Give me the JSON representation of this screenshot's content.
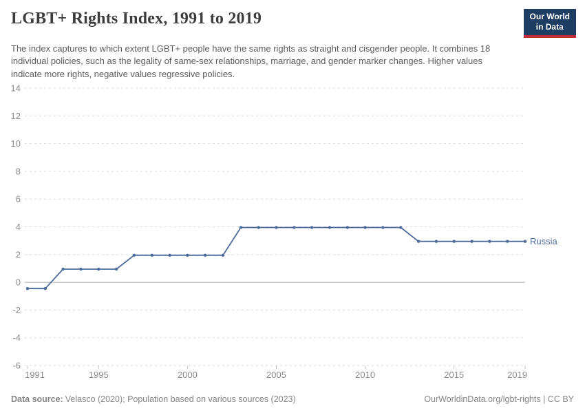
{
  "header": {
    "title": "LGBT+ Rights Index, 1991 to 2019",
    "subtitle": "The index captures to which extent LGBT+ people have the same rights as straight and cisgender people. It combines 18 individual policies, such as the legality of same-sex relationships, marriage, and gender marker changes. Higher values indicate more rights, negative values regressive policies.",
    "logo": {
      "line1": "Our World",
      "line2": "in Data"
    }
  },
  "chart_data": {
    "type": "line",
    "title": "LGBT+ Rights Index, 1991 to 2019",
    "xlabel": "",
    "ylabel": "",
    "xlim": [
      1991,
      2019
    ],
    "ylim": [
      -6,
      14
    ],
    "xticks": [
      1991,
      1995,
      2000,
      2005,
      2010,
      2015,
      2019
    ],
    "yticks": [
      14,
      12,
      10,
      8,
      6,
      4,
      2,
      0,
      -2,
      -4,
      -6
    ],
    "grid": "horizontal-dashed",
    "legend_position": "label-at-line-end",
    "series": [
      {
        "name": "Russia",
        "color": "#4C6A9C",
        "x": [
          1991,
          1992,
          1993,
          1994,
          1995,
          1996,
          1997,
          1998,
          1999,
          2000,
          2001,
          2002,
          2003,
          2004,
          2005,
          2006,
          2007,
          2008,
          2009,
          2010,
          2011,
          2012,
          2013,
          2014,
          2015,
          2016,
          2017,
          2018,
          2019
        ],
        "values": [
          -0.45,
          -0.45,
          0.95,
          0.95,
          0.95,
          0.95,
          1.95,
          1.95,
          1.95,
          1.95,
          1.95,
          1.95,
          3.95,
          3.95,
          3.95,
          3.95,
          3.95,
          3.95,
          3.95,
          3.95,
          3.95,
          3.95,
          2.95,
          2.95,
          2.95,
          2.95,
          2.95,
          2.95,
          2.95
        ]
      }
    ]
  },
  "footer": {
    "datasource_label": "Data source:",
    "datasource_text": "Velasco (2020); Population based on various sources (2023)",
    "credit": "OurWorldinData.org/lgbt-rights | CC BY"
  },
  "colors": {
    "line": "#4C6A9C",
    "grid": "#dadada",
    "zero_line": "#adadad",
    "x_tick": "#c4c4c4",
    "axis_text": "#8b8b8b",
    "title_text": "#3d3d3d",
    "subtitle_text": "#5b5b5b",
    "footer_text": "#858585",
    "logo_navy": "#1d3d63",
    "logo_red": "#bf2e3e"
  }
}
